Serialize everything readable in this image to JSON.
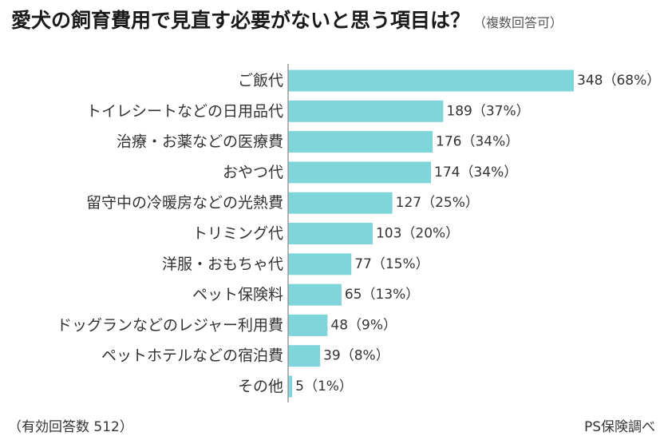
{
  "chart_data": {
    "type": "bar",
    "orientation": "horizontal",
    "title": "愛犬の飼育費用で見直す必要がないと思う項目は？",
    "subtitle": "（複数回答可）",
    "categories": [
      "ご飯代",
      "トイレシートなどの日用品代",
      "治療・お薬などの医療費",
      "おやつ代",
      "留守中の冷暖房などの光熱費",
      "トリミング代",
      "洋服・おもちゃ代",
      "ペット保険料",
      "ドッグランなどのレジャー利用費",
      "ペットホテルなどの宿泊費",
      "その他"
    ],
    "values": [
      348,
      189,
      176,
      174,
      127,
      103,
      77,
      65,
      48,
      39,
      5
    ],
    "value_labels": [
      "348（68%）",
      "189（37%）",
      "176（34%）",
      "174（34%）",
      "127（25%）",
      "103（20%）",
      "77（15%）",
      "65（13%）",
      "48（9%）",
      "39（8%）",
      "5（1%）"
    ],
    "xlim": [
      0,
      348
    ],
    "bar_color": "#7ed6db",
    "axis_color": "#9a9a9a"
  },
  "footer": {
    "respondents": "（有効回答数 512）",
    "source": "PS保険調べ"
  }
}
